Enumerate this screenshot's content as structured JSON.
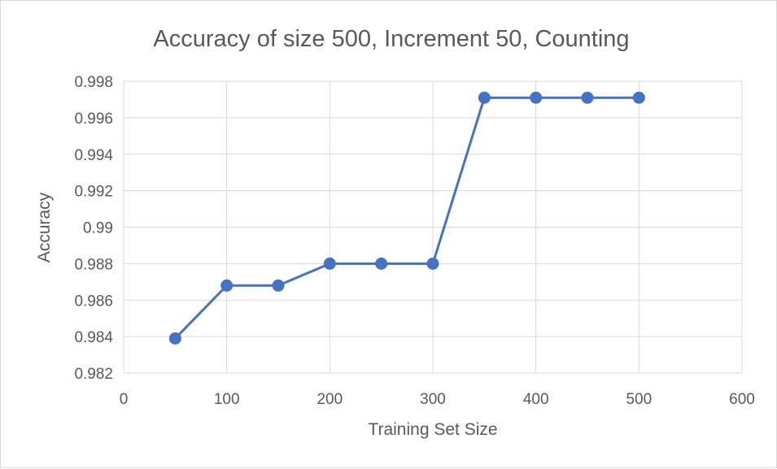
{
  "chart_data": {
    "type": "scatter",
    "title": "Accuracy of size 500, Increment 50, Counting",
    "xlabel": "Training Set Size",
    "ylabel": "Accuracy",
    "xlim": [
      0,
      600
    ],
    "ylim": [
      0.982,
      0.998
    ],
    "x_ticks": [
      0,
      100,
      200,
      300,
      400,
      500,
      600
    ],
    "x_tick_labels": [
      "0",
      "100",
      "200",
      "300",
      "400",
      "500",
      "600"
    ],
    "y_ticks": [
      0.982,
      0.984,
      0.986,
      0.988,
      0.99,
      0.992,
      0.994,
      0.996,
      0.998
    ],
    "y_tick_labels": [
      "0.982",
      "0.984",
      "0.986",
      "0.988",
      "0.99",
      "0.992",
      "0.994",
      "0.996",
      "0.998"
    ],
    "grid": true,
    "series": [
      {
        "name": "Accuracy",
        "color": "#4472c4",
        "x": [
          50,
          100,
          150,
          200,
          250,
          300,
          350,
          400,
          450,
          500
        ],
        "y": [
          0.9839,
          0.9868,
          0.9868,
          0.988,
          0.988,
          0.988,
          0.9971,
          0.9971,
          0.9971,
          0.9971
        ]
      }
    ]
  }
}
